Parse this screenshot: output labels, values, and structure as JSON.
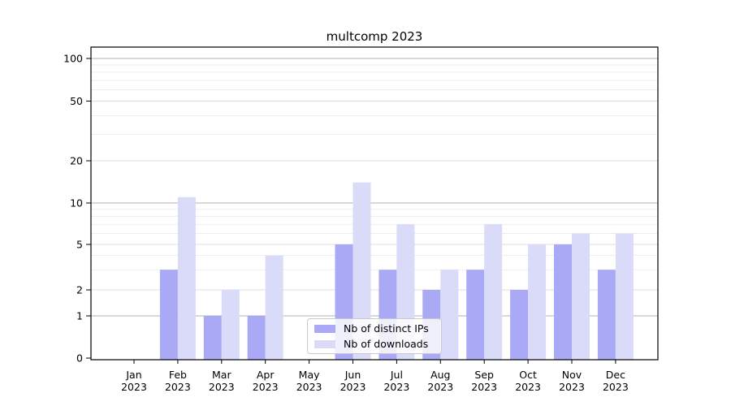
{
  "chart_data": {
    "type": "bar",
    "title": "multcomp 2023",
    "categories": [
      "Jan",
      "Feb",
      "Mar",
      "Apr",
      "May",
      "Jun",
      "Jul",
      "Aug",
      "Sep",
      "Oct",
      "Nov",
      "Dec"
    ],
    "category_year_label": "2023",
    "series": [
      {
        "name": "Nb of distinct IPs",
        "color": "#a9a9f5",
        "values": [
          0,
          3,
          1,
          1,
          0,
          5,
          3,
          2,
          3,
          2,
          5,
          3
        ]
      },
      {
        "name": "Nb of downloads",
        "color": "#dadaf9",
        "values": [
          0,
          11,
          2,
          4,
          0,
          14,
          7,
          3,
          7,
          5,
          6,
          6
        ]
      }
    ],
    "xlabel": "",
    "ylabel": "",
    "yaxis": {
      "scale": "log-like",
      "range": [
        0,
        100
      ],
      "major_ticks": [
        0,
        1,
        2,
        5,
        10,
        20,
        50,
        100
      ],
      "minor_ticks": [
        3,
        4,
        6,
        7,
        8,
        9,
        30,
        40,
        60,
        70,
        80,
        90
      ],
      "decade_ticks": [
        1,
        10,
        100
      ]
    },
    "grid": true,
    "legend_position": "lower-center-inside",
    "colors": {
      "grid_decade": "#b0b0b0",
      "grid_major": "#dcdcdc",
      "grid_minor": "#e9e9e9",
      "spine": "#000000",
      "tick_label": "#000000",
      "legend_border": "#c9c9c9",
      "background": "#ffffff"
    }
  }
}
